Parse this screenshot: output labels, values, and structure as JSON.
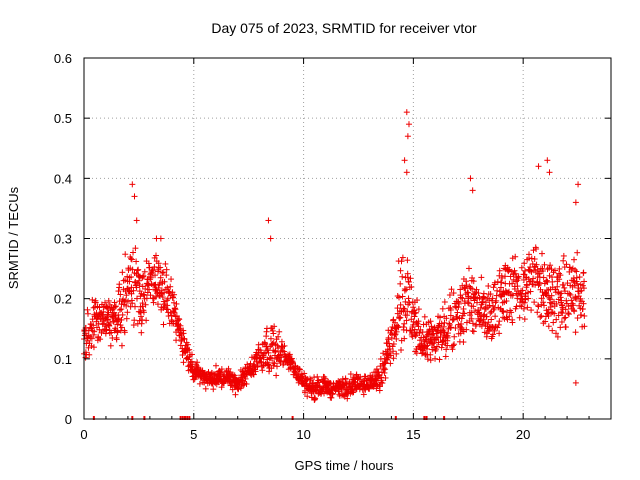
{
  "chart_data": {
    "type": "scatter",
    "title": "Day 075 of 2023, SRMTID for receiver vtor",
    "xlabel": "GPS time / hours",
    "ylabel": "SRMTID / TECUs",
    "xlim": [
      0,
      24
    ],
    "ylim": [
      0,
      0.6
    ],
    "xticks": [
      0,
      5,
      10,
      15,
      20
    ],
    "xtick_labels": [
      "0",
      "5",
      "10",
      "15",
      "20"
    ],
    "yticks": [
      0,
      0.1,
      0.2,
      0.3,
      0.4,
      0.5,
      0.6
    ],
    "ytick_labels": [
      "0",
      "0.1",
      "0.2",
      "0.3",
      "0.4",
      "0.5",
      "0.6"
    ],
    "grid": true,
    "marker": "+",
    "color": "#ee0000",
    "series": [
      {
        "name": "SRMTID",
        "envelope_x": [
          0,
          0.5,
          1,
          1.5,
          2,
          2.3,
          2.6,
          3,
          3.3,
          3.6,
          4,
          4.5,
          5,
          5.5,
          6,
          6.5,
          7,
          7.5,
          8,
          8.5,
          9,
          9.5,
          10,
          10.5,
          11,
          11.5,
          12,
          12.5,
          13,
          13.5,
          14,
          14.3,
          14.6,
          14.8,
          15,
          15.5,
          16,
          16.5,
          17,
          17.5,
          18,
          18.5,
          19,
          19.5,
          20,
          20.5,
          21,
          21.5,
          22,
          22.5,
          22.8
        ],
        "envelope_y": [
          0.13,
          0.16,
          0.17,
          0.16,
          0.22,
          0.24,
          0.2,
          0.23,
          0.24,
          0.22,
          0.18,
          0.13,
          0.08,
          0.07,
          0.07,
          0.07,
          0.06,
          0.08,
          0.1,
          0.12,
          0.11,
          0.09,
          0.06,
          0.05,
          0.055,
          0.05,
          0.055,
          0.06,
          0.06,
          0.07,
          0.13,
          0.16,
          0.19,
          0.2,
          0.16,
          0.13,
          0.13,
          0.15,
          0.18,
          0.2,
          0.18,
          0.17,
          0.2,
          0.22,
          0.21,
          0.24,
          0.22,
          0.2,
          0.2,
          0.22,
          0.2
        ],
        "spread_y": [
          0.05,
          0.05,
          0.05,
          0.05,
          0.07,
          0.09,
          0.07,
          0.06,
          0.06,
          0.06,
          0.05,
          0.04,
          0.02,
          0.02,
          0.02,
          0.02,
          0.02,
          0.02,
          0.03,
          0.05,
          0.03,
          0.02,
          0.02,
          0.02,
          0.02,
          0.02,
          0.02,
          0.02,
          0.02,
          0.03,
          0.05,
          0.09,
          0.12,
          0.1,
          0.06,
          0.04,
          0.05,
          0.06,
          0.07,
          0.07,
          0.06,
          0.06,
          0.07,
          0.07,
          0.07,
          0.08,
          0.08,
          0.07,
          0.07,
          0.08,
          0.07
        ],
        "peaks": [
          {
            "x": 2.2,
            "y": 0.39
          },
          {
            "x": 2.3,
            "y": 0.37
          },
          {
            "x": 2.4,
            "y": 0.33
          },
          {
            "x": 3.3,
            "y": 0.3
          },
          {
            "x": 3.5,
            "y": 0.3
          },
          {
            "x": 8.4,
            "y": 0.33
          },
          {
            "x": 8.5,
            "y": 0.3
          },
          {
            "x": 14.7,
            "y": 0.51
          },
          {
            "x": 14.8,
            "y": 0.49
          },
          {
            "x": 14.75,
            "y": 0.47
          },
          {
            "x": 14.6,
            "y": 0.43
          },
          {
            "x": 14.7,
            "y": 0.41
          },
          {
            "x": 17.6,
            "y": 0.4
          },
          {
            "x": 17.7,
            "y": 0.38
          },
          {
            "x": 20.7,
            "y": 0.42
          },
          {
            "x": 21.1,
            "y": 0.43
          },
          {
            "x": 21.2,
            "y": 0.41
          },
          {
            "x": 22.5,
            "y": 0.39
          },
          {
            "x": 22.4,
            "y": 0.36
          },
          {
            "x": 22.4,
            "y": 0.06
          }
        ],
        "zero_markers_x": [
          0.45,
          2.2,
          2.75,
          4.4,
          4.5,
          4.6,
          4.7,
          4.8,
          9.5,
          14.2,
          15.5,
          15.6,
          16.4
        ]
      }
    ]
  }
}
